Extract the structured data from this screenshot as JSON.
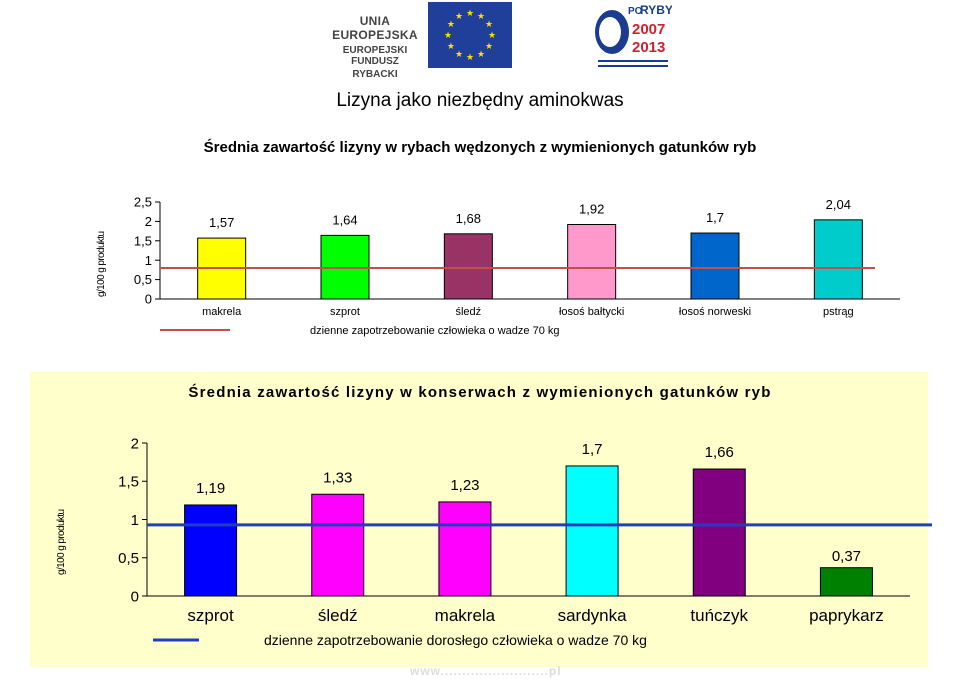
{
  "page": {
    "title": "Lizyna jako niezbędny aminokwas",
    "eu_logo": {
      "line1": "UNIA EUROPEJSKA",
      "line2": "EUROPEJSKI FUNDUSZ",
      "line3": "RYBACKI",
      "flag_color": "#1f3f9a",
      "star_color": "#ffdd00"
    },
    "program_logo": {
      "line1": "PO",
      "line2": "RYBY",
      "line3": "2007",
      "line4": "2013",
      "color": "#1a3d8f",
      "accent": "#d01f2f"
    },
    "footer_url": "www.........................pl"
  },
  "chart_data": [
    {
      "type": "bar",
      "title": "Średnia zawartość lizyny w rybach wędzonych z wymienionych gatunków ryb",
      "ylabel": "g/100 g produktu",
      "xlabel": "",
      "ylim": [
        0,
        2.5
      ],
      "yticks": [
        "0",
        "0,5",
        "1",
        "1,5",
        "2",
        "2,5"
      ],
      "categories": [
        "makrela",
        "szprot",
        "śledź",
        "łosoś bałtycki",
        "łosoś norweski",
        "pstrąg"
      ],
      "values": [
        1.57,
        1.64,
        1.68,
        1.92,
        1.7,
        2.04
      ],
      "value_labels": [
        "1,57",
        "1,64",
        "1,68",
        "1,92",
        "1,7",
        "2,04"
      ],
      "bar_colors": [
        "#ffff00",
        "#00ff00",
        "#993366",
        "#ff99cc",
        "#0066cc",
        "#00cccc"
      ],
      "reference_line": {
        "name": "dzienne zapotrzebowanie człowieka o wadze 70 kg",
        "value": 0.8,
        "color": "#c0504d"
      },
      "grid": false,
      "legend_position": "bottom"
    },
    {
      "type": "bar",
      "title": "Średnia zawartość lizyny w konserwach z wymienionych gatunków ryb",
      "ylabel": "g/100 g produktu",
      "xlabel": "",
      "ylim": [
        0,
        2
      ],
      "yticks": [
        "0",
        "0,5",
        "1",
        "1,5",
        "2"
      ],
      "categories": [
        "szprot",
        "śledź",
        "makrela",
        "sardynka",
        "tuńczyk",
        "paprykarz"
      ],
      "values": [
        1.19,
        1.33,
        1.23,
        1.7,
        1.66,
        0.37
      ],
      "value_labels": [
        "1,19",
        "1,33",
        "1,23",
        "1,7",
        "1,66",
        "0,37"
      ],
      "bar_colors": [
        "#0000ff",
        "#ff00ff",
        "#ff00ff",
        "#00ffff",
        "#800080",
        "#008000"
      ],
      "reference_line": {
        "name": "dzienne zapotrzebowanie dorosłego człowieka o wadze 70 kg",
        "value": 0.93,
        "color": "#1f3fbf"
      },
      "grid": false,
      "legend_position": "bottom",
      "background": "#ffffcc"
    }
  ]
}
